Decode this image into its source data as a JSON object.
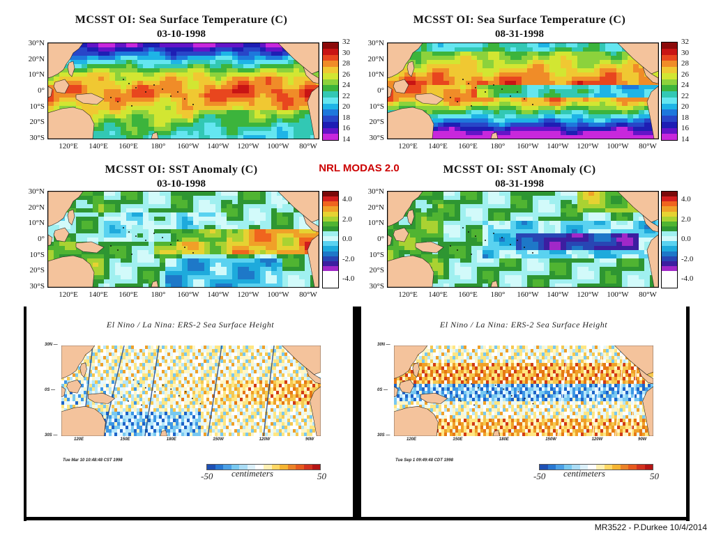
{
  "branding": "NRL MODAS 2.0",
  "credit": "MR3522 - P.Durkee 10/4/2014",
  "lat_labels": [
    "30°N",
    "20°N",
    "10°N",
    "0°",
    "10°S",
    "20°S",
    "30°S"
  ],
  "lon_labels": [
    "120°E",
    "140°E",
    "160°E",
    "180°",
    "160°W",
    "140°W",
    "120°W",
    "100°W",
    "80°W"
  ],
  "sst_scale": [
    "32",
    "30",
    "28",
    "26",
    "24",
    "22",
    "20",
    "18",
    "16",
    "14"
  ],
  "anom_scale": [
    "4.0",
    "2.0",
    "0.0",
    "-2.0",
    "-4.0"
  ],
  "panels": {
    "sst_left": {
      "title": "MCSST OI:  Sea Surface Temperature (C)",
      "date": "03-10-1998"
    },
    "sst_right": {
      "title": "MCSST OI:  Sea Surface Temperature (C)",
      "date": "08-31-1998"
    },
    "anom_left": {
      "title": "MCSST OI:  SST Anomaly (C)",
      "date": "03-10-1998"
    },
    "anom_right": {
      "title": "MCSST OI:  SST Anomaly (C)",
      "date": "08-31-1998"
    }
  },
  "ssh": {
    "title": "El Nino / La Nina: ERS-2 Sea Surface Height",
    "lat_labels": [
      "30N",
      "0S",
      "30S"
    ],
    "lon_labels": [
      "120E",
      "150E",
      "180E",
      "150W",
      "120W",
      "90W"
    ],
    "colorbar_unit": "centimeters",
    "colorbar_min": "-50",
    "colorbar_max": "50",
    "left_stamp": "Tue Mar 10 10:48:48 CST 1998",
    "right_stamp": "Tue Sep  1 09:49:48 CDT 1998"
  },
  "colors": {
    "land": "#f4c39c",
    "sst_palette": [
      "#8b0a0a",
      "#c81414",
      "#e8461e",
      "#f08c28",
      "#f0c832",
      "#d2e632",
      "#8cd23c",
      "#3cb43c",
      "#32c8b4",
      "#64e6f0",
      "#1eb4e6",
      "#1e78dc",
      "#2846c8",
      "#1e1eb4",
      "#6414c8",
      "#c828dc"
    ],
    "anom_palette": [
      "#7a0a0a",
      "#d21e1e",
      "#f0641e",
      "#f0a028",
      "#e6d232",
      "#aad232",
      "#50b432",
      "#2e9632",
      "#a0f0f0",
      "#d2fafa",
      "#5ad2f0",
      "#1eaadc",
      "#1e78c8",
      "#2846b4",
      "#3c1ea0",
      "#a028c8"
    ]
  }
}
